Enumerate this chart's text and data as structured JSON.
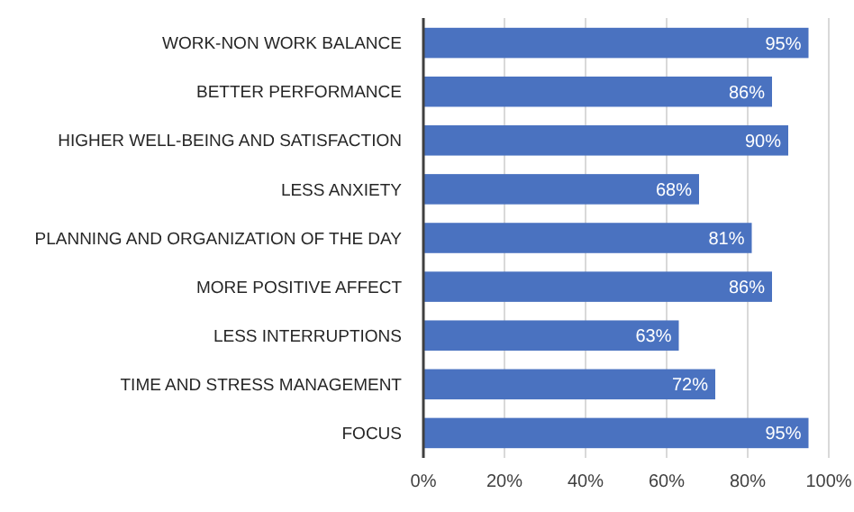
{
  "chart_data": {
    "type": "bar",
    "orientation": "horizontal",
    "categories": [
      "WORK-NON WORK BALANCE",
      "BETTER PERFORMANCE",
      "HIGHER WELL-BEING AND SATISFACTION",
      "LESS ANXIETY",
      "PLANNING AND ORGANIZATION OF THE DAY",
      "MORE POSITIVE AFFECT",
      "LESS INTERRUPTIONS",
      "TIME AND STRESS MANAGEMENT",
      "FOCUS"
    ],
    "values": [
      95,
      86,
      90,
      68,
      81,
      86,
      63,
      72,
      95
    ],
    "value_labels": [
      "95%",
      "86%",
      "90%",
      "68%",
      "81%",
      "86%",
      "63%",
      "72%",
      "95%"
    ],
    "color": "#4a72c0",
    "xlim": [
      0,
      100
    ],
    "xticks": [
      {
        "value": 0,
        "label": "0%"
      },
      {
        "value": 20,
        "label": "20%"
      },
      {
        "value": 40,
        "label": "40%"
      },
      {
        "value": 60,
        "label": "60%"
      },
      {
        "value": 80,
        "label": "80%"
      },
      {
        "value": 100,
        "label": "100%"
      }
    ],
    "grid": "x"
  }
}
